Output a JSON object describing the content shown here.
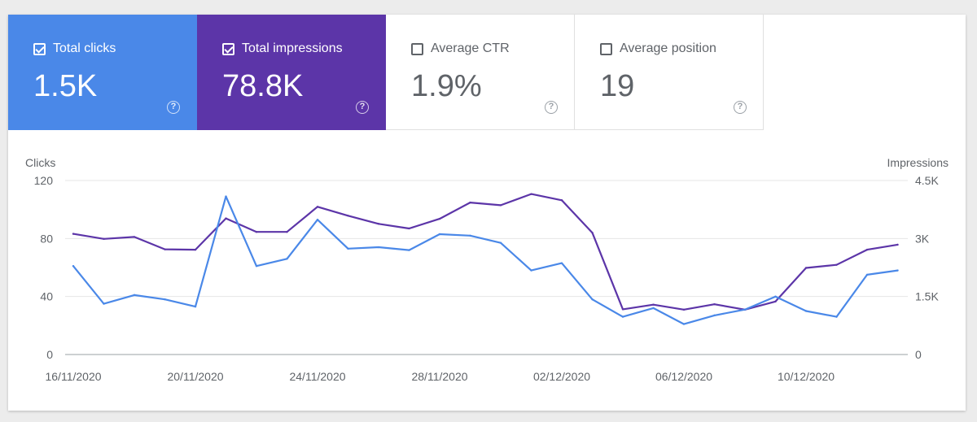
{
  "metrics": {
    "clicks": {
      "label": "Total clicks",
      "value": "1.5K",
      "checked": true,
      "color": "#4a88e8"
    },
    "impressions": {
      "label": "Total impressions",
      "value": "78.8K",
      "checked": true,
      "color": "#5c35a8"
    },
    "ctr": {
      "label": "Average CTR",
      "value": "1.9%",
      "checked": false
    },
    "position": {
      "label": "Average position",
      "value": "19",
      "checked": false
    },
    "help_icon": "?"
  },
  "chart_data": {
    "type": "line",
    "left_axis": {
      "title": "Clicks",
      "ticks": [
        0,
        40,
        80,
        120
      ],
      "tick_labels": [
        "0",
        "40",
        "80",
        "120"
      ],
      "range": [
        0,
        120
      ]
    },
    "right_axis": {
      "title": "Impressions",
      "ticks": [
        0,
        1500,
        3000,
        4500
      ],
      "tick_labels": [
        "0",
        "1.5K",
        "3K",
        "4.5K"
      ],
      "range": [
        0,
        4500
      ]
    },
    "x_labels": [
      {
        "index": 0,
        "label": "16/11/2020"
      },
      {
        "index": 4,
        "label": "20/11/2020"
      },
      {
        "index": 8,
        "label": "24/11/2020"
      },
      {
        "index": 12,
        "label": "28/11/2020"
      },
      {
        "index": 16,
        "label": "02/12/2020"
      },
      {
        "index": 20,
        "label": "06/12/2020"
      },
      {
        "index": 24,
        "label": "10/12/2020"
      }
    ],
    "series": [
      {
        "name": "Total impressions",
        "axis": "right",
        "color": "#5c35a8",
        "values": [
          3120,
          2990,
          3040,
          2720,
          2710,
          3520,
          3170,
          3170,
          3820,
          3590,
          3380,
          3260,
          3510,
          3930,
          3860,
          4150,
          3990,
          3150,
          1170,
          1290,
          1160,
          1300,
          1160,
          1370,
          2240,
          2320,
          2710,
          2840
        ]
      },
      {
        "name": "Total clicks",
        "axis": "left",
        "color": "#4a88e8",
        "values": [
          61,
          35,
          41,
          38,
          33,
          109,
          61,
          66,
          93,
          73,
          74,
          72,
          83,
          82,
          77,
          58,
          63,
          38,
          26,
          32,
          21,
          27,
          31,
          40,
          30,
          26,
          55,
          58
        ]
      }
    ]
  }
}
